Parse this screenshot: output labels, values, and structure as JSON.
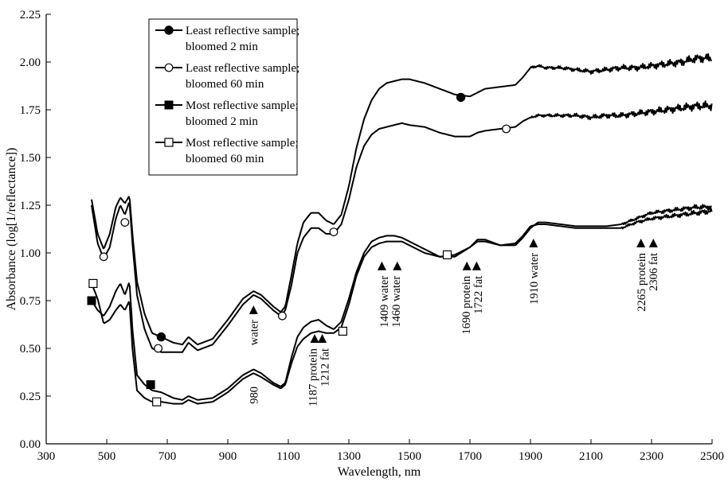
{
  "chart_data": {
    "type": "line",
    "title": "",
    "xlabel": "Wavelength, nm",
    "ylabel": "Absorbance (log[1/reflectance])",
    "xlim": [
      300,
      2500
    ],
    "ylim": [
      0,
      2.25
    ],
    "xticks": [
      300,
      500,
      700,
      900,
      1100,
      1300,
      1500,
      1700,
      1900,
      2100,
      2300,
      2500
    ],
    "yticks": [
      0,
      0.25,
      0.5,
      0.75,
      1.0,
      1.25,
      1.5,
      1.75,
      2.0,
      2.25
    ],
    "xtick_labels": [
      "300",
      "500",
      "700",
      "900",
      "1100",
      "1300",
      "1500",
      "1700",
      "1900",
      "2100",
      "2300",
      "2500"
    ],
    "ytick_labels": [
      "0.00",
      "0.25",
      "0.50",
      "0.75",
      "1.00",
      "1.25",
      "1.50",
      "1.75",
      "2.00",
      "2.25"
    ],
    "grid": false,
    "legend_position": "top-left",
    "series": [
      {
        "name": "Least reflective sample; bloomed 2 min",
        "name_lines": [
          "Least reflective sample;",
          "bloomed 2 min"
        ],
        "marker": "filled-circle",
        "marker_points": [
          [
            680,
            0.56
          ],
          [
            1670,
            1.815
          ]
        ],
        "noise_from": 1900,
        "x": [
          450,
          470,
          490,
          510,
          530,
          545,
          560,
          575,
          585,
          600,
          625,
          650,
          680,
          720,
          750,
          770,
          800,
          850,
          900,
          950,
          985,
          1010,
          1050,
          1075,
          1090,
          1110,
          1130,
          1150,
          1175,
          1200,
          1225,
          1250,
          1275,
          1300,
          1325,
          1350,
          1375,
          1400,
          1425,
          1450,
          1475,
          1500,
          1550,
          1600,
          1650,
          1700,
          1725,
          1750,
          1800,
          1850,
          1875,
          1900,
          1925,
          1950,
          2000,
          2050,
          2100,
          2150,
          2200,
          2250,
          2300,
          2350,
          2400,
          2450,
          2500
        ],
        "y": [
          1.28,
          1.1,
          1.02,
          1.1,
          1.24,
          1.29,
          1.26,
          1.3,
          1.1,
          0.85,
          0.68,
          0.58,
          0.56,
          0.53,
          0.52,
          0.56,
          0.52,
          0.55,
          0.65,
          0.76,
          0.8,
          0.78,
          0.72,
          0.69,
          0.72,
          0.88,
          1.05,
          1.16,
          1.21,
          1.21,
          1.17,
          1.15,
          1.2,
          1.35,
          1.55,
          1.7,
          1.8,
          1.86,
          1.89,
          1.9,
          1.91,
          1.91,
          1.89,
          1.86,
          1.83,
          1.82,
          1.84,
          1.86,
          1.87,
          1.88,
          1.92,
          1.97,
          1.98,
          1.97,
          1.97,
          1.96,
          1.95,
          1.96,
          1.97,
          1.97,
          1.98,
          1.99,
          2.0,
          2.02,
          2.02
        ]
      },
      {
        "name": "Least reflective sample; bloomed 60 min",
        "name_lines": [
          "Least reflective sample;",
          "bloomed 60 min"
        ],
        "marker": "open-circle",
        "marker_points": [
          [
            490,
            0.98
          ],
          [
            560,
            1.16
          ],
          [
            670,
            0.5
          ],
          [
            1080,
            0.67
          ],
          [
            1250,
            1.11
          ],
          [
            1820,
            1.65
          ]
        ],
        "noise_from": 1900,
        "x": [
          450,
          470,
          490,
          510,
          530,
          545,
          560,
          575,
          585,
          600,
          625,
          650,
          680,
          720,
          750,
          770,
          800,
          850,
          900,
          950,
          985,
          1010,
          1050,
          1075,
          1090,
          1110,
          1130,
          1150,
          1175,
          1200,
          1225,
          1250,
          1275,
          1300,
          1325,
          1350,
          1375,
          1400,
          1425,
          1450,
          1475,
          1500,
          1550,
          1600,
          1650,
          1700,
          1725,
          1750,
          1800,
          1850,
          1875,
          1900,
          1925,
          1950,
          2000,
          2050,
          2100,
          2150,
          2200,
          2250,
          2300,
          2350,
          2400,
          2450,
          2500
        ],
        "y": [
          1.25,
          1.05,
          0.97,
          1.03,
          1.18,
          1.25,
          1.2,
          1.27,
          1.05,
          0.78,
          0.6,
          0.5,
          0.48,
          0.48,
          0.48,
          0.53,
          0.49,
          0.52,
          0.62,
          0.73,
          0.78,
          0.76,
          0.7,
          0.67,
          0.7,
          0.83,
          1.0,
          1.08,
          1.13,
          1.13,
          1.1,
          1.1,
          1.15,
          1.28,
          1.45,
          1.56,
          1.62,
          1.65,
          1.66,
          1.67,
          1.68,
          1.67,
          1.66,
          1.63,
          1.61,
          1.61,
          1.63,
          1.64,
          1.65,
          1.66,
          1.69,
          1.71,
          1.72,
          1.72,
          1.72,
          1.72,
          1.71,
          1.72,
          1.72,
          1.73,
          1.74,
          1.75,
          1.76,
          1.77,
          1.77
        ]
      },
      {
        "name": "Most reflective sample; bloomed 2 min",
        "name_lines": [
          "Most reflective sample;",
          "bloomed 2 min"
        ],
        "marker": "filled-square",
        "marker_points": [
          [
            450,
            0.75
          ],
          [
            645,
            0.31
          ]
        ],
        "noise_from": 2200,
        "x": [
          450,
          470,
          490,
          510,
          530,
          545,
          560,
          575,
          585,
          600,
          625,
          650,
          680,
          720,
          750,
          770,
          800,
          850,
          900,
          950,
          985,
          1010,
          1050,
          1075,
          1090,
          1110,
          1130,
          1150,
          1175,
          1200,
          1225,
          1250,
          1275,
          1300,
          1325,
          1350,
          1375,
          1400,
          1425,
          1450,
          1475,
          1500,
          1550,
          1600,
          1650,
          1700,
          1725,
          1750,
          1800,
          1850,
          1875,
          1900,
          1925,
          1950,
          2000,
          2050,
          2100,
          2150,
          2200,
          2250,
          2300,
          2350,
          2400,
          2450,
          2500
        ],
        "y": [
          0.75,
          0.7,
          0.67,
          0.72,
          0.8,
          0.84,
          0.78,
          0.85,
          0.6,
          0.36,
          0.31,
          0.28,
          0.27,
          0.24,
          0.23,
          0.25,
          0.23,
          0.24,
          0.29,
          0.36,
          0.39,
          0.37,
          0.32,
          0.3,
          0.32,
          0.45,
          0.56,
          0.61,
          0.64,
          0.65,
          0.62,
          0.6,
          0.64,
          0.76,
          0.9,
          1.0,
          1.06,
          1.08,
          1.09,
          1.09,
          1.08,
          1.06,
          1.02,
          0.98,
          0.98,
          1.03,
          1.07,
          1.07,
          1.04,
          1.04,
          1.08,
          1.13,
          1.16,
          1.16,
          1.15,
          1.14,
          1.14,
          1.14,
          1.15,
          1.18,
          1.21,
          1.22,
          1.23,
          1.24,
          1.24
        ]
      },
      {
        "name": "Most reflective sample; bloomed 60 min",
        "name_lines": [
          "Most reflective sample;",
          "bloomed 60 min"
        ],
        "marker": "open-square",
        "marker_points": [
          [
            455,
            0.84
          ],
          [
            665,
            0.22
          ],
          [
            1280,
            0.59
          ],
          [
            1625,
            0.99
          ]
        ],
        "noise_from": 2200,
        "x": [
          450,
          470,
          490,
          510,
          530,
          545,
          560,
          575,
          585,
          600,
          625,
          650,
          680,
          720,
          750,
          770,
          800,
          850,
          900,
          950,
          985,
          1010,
          1050,
          1075,
          1090,
          1110,
          1130,
          1150,
          1175,
          1200,
          1225,
          1250,
          1275,
          1300,
          1325,
          1350,
          1375,
          1400,
          1425,
          1450,
          1475,
          1500,
          1550,
          1600,
          1650,
          1700,
          1725,
          1750,
          1800,
          1850,
          1875,
          1900,
          1925,
          1950,
          2000,
          2050,
          2100,
          2150,
          2200,
          2250,
          2300,
          2350,
          2400,
          2450,
          2500
        ],
        "y": [
          0.84,
          0.76,
          0.63,
          0.65,
          0.7,
          0.73,
          0.7,
          0.75,
          0.5,
          0.28,
          0.24,
          0.22,
          0.22,
          0.21,
          0.21,
          0.23,
          0.21,
          0.22,
          0.27,
          0.34,
          0.37,
          0.35,
          0.31,
          0.29,
          0.31,
          0.42,
          0.51,
          0.55,
          0.58,
          0.59,
          0.58,
          0.58,
          0.61,
          0.73,
          0.88,
          0.98,
          1.03,
          1.05,
          1.06,
          1.06,
          1.06,
          1.04,
          1.0,
          0.98,
          0.99,
          1.03,
          1.06,
          1.06,
          1.04,
          1.05,
          1.09,
          1.14,
          1.15,
          1.15,
          1.14,
          1.13,
          1.13,
          1.13,
          1.13,
          1.16,
          1.18,
          1.19,
          1.2,
          1.21,
          1.22
        ]
      }
    ],
    "annotations": [
      {
        "id": "water-985",
        "lines": [
          "water"
        ],
        "x": 985,
        "marker_y": 0.7,
        "text_y_top": 0.65
      },
      {
        "id": "980",
        "lines": [
          "980"
        ],
        "x": 985,
        "marker_y": null,
        "text_y_top": 0.3
      },
      {
        "id": "1187-1212",
        "lines": [
          "1187 protein",
          "1212 fat"
        ],
        "x": 1200,
        "marker_y": 0.55,
        "text_y_top": 0.5
      },
      {
        "id": "1409-1460",
        "lines": [
          "1409 water",
          "1460 water"
        ],
        "x": 1435,
        "marker_y": 0.93,
        "text_y_top": 0.88
      },
      {
        "id": "1690-1722",
        "lines": [
          "1690 protein",
          "1722 fat"
        ],
        "x": 1706,
        "marker_y": 0.93,
        "text_y_top": 0.88
      },
      {
        "id": "1910",
        "lines": [
          "1910  water"
        ],
        "x": 1910,
        "marker_y": 1.05,
        "text_y_top": 1.0
      },
      {
        "id": "2265-2306",
        "lines": [
          "2265 protein",
          "2306 fat"
        ],
        "x": 2285,
        "marker_y": 1.05,
        "text_y_top": 1.0
      }
    ],
    "annotation_markers": [
      985,
      1187,
      1212,
      1409,
      1460,
      1690,
      1722,
      1910,
      2265,
      2306
    ]
  }
}
